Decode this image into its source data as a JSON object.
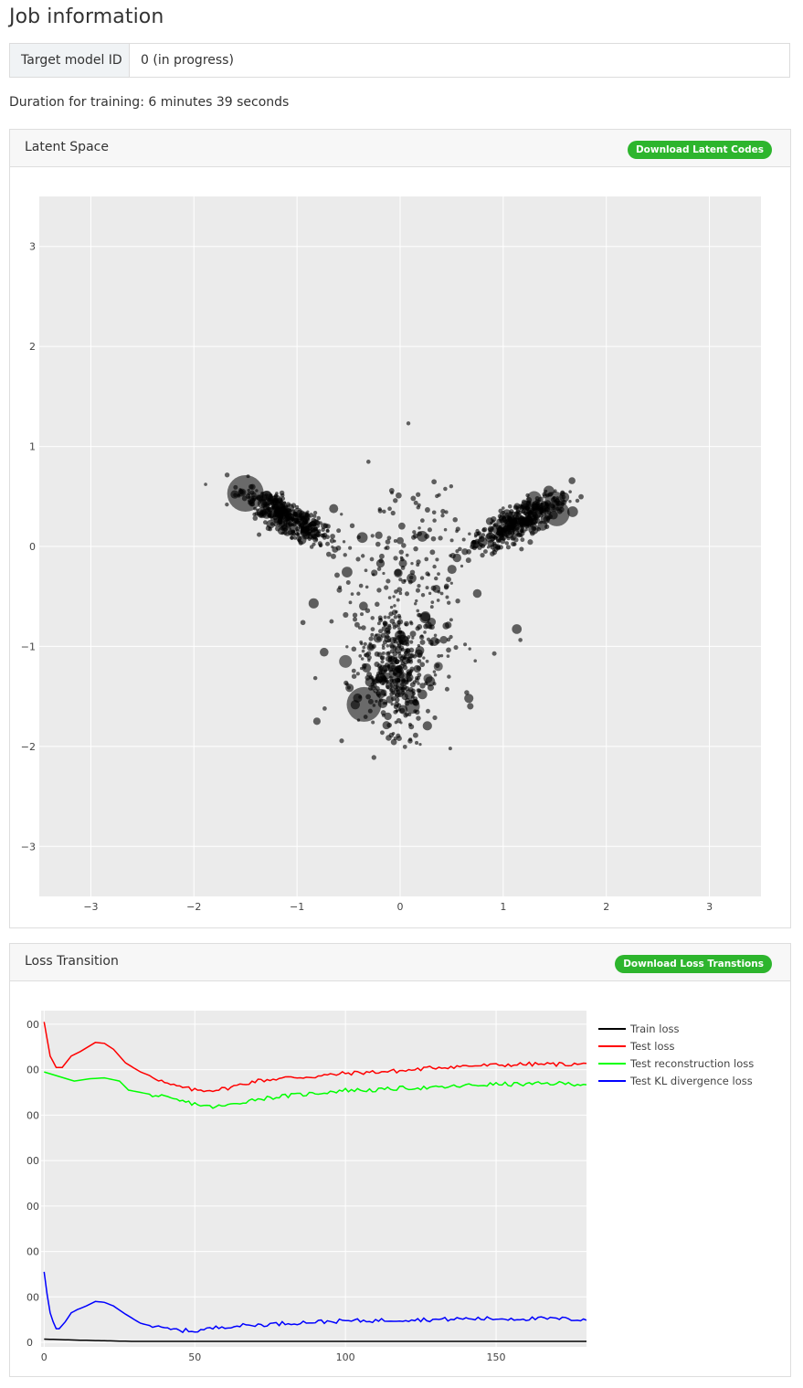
{
  "page": {
    "title": "Job information",
    "target_model_label": "Target model ID",
    "target_model_value": "0 (in progress)",
    "duration": "Duration for training: 6 minutes 39 seconds"
  },
  "latent_card": {
    "title": "Latent Space",
    "download_label": "Download Latent Codes"
  },
  "loss_card": {
    "title": "Loss Transition",
    "download_label": "Download Loss Transtions"
  },
  "colors": {
    "plot_bg": "#ebebeb",
    "button_green": "#2db52d",
    "train": "#000000",
    "test": "#ff0000",
    "recon": "#00ff00",
    "kl": "#0000ff"
  },
  "chart_data": [
    {
      "type": "scatter",
      "title": "",
      "xlabel": "",
      "ylabel": "",
      "xlim": [
        -3.5,
        3.5
      ],
      "ylim": [
        -3.5,
        3.5
      ],
      "x_ticks": [
        -3,
        -2,
        -1,
        0,
        1,
        2,
        3
      ],
      "y_ticks": [
        -3,
        -2,
        -1,
        0,
        1,
        2,
        3
      ],
      "x_tick_labels": [
        "−3",
        "−2",
        "−1",
        "0",
        "1",
        "2",
        "3"
      ],
      "y_tick_labels": [
        "−3",
        "−2",
        "−1",
        "0",
        "1",
        "2",
        "3"
      ],
      "grid": true,
      "clusters": [
        {
          "center": [
            -1.1,
            0.3
          ],
          "n": 380,
          "spread": [
            0.14,
            0.09
          ],
          "direction": [
            0.7,
            -0.4
          ]
        },
        {
          "center": [
            1.15,
            0.25
          ],
          "n": 380,
          "spread": [
            0.14,
            0.1
          ],
          "direction": [
            0.7,
            0.4
          ]
        },
        {
          "center": [
            -0.05,
            -1.25
          ],
          "n": 330,
          "spread": [
            0.13,
            0.16
          ],
          "direction": [
            0,
            1
          ]
        },
        {
          "center": [
            0.05,
            -0.45
          ],
          "n": 260,
          "spread": [
            0.28,
            0.4
          ],
          "direction": [
            0,
            1
          ]
        }
      ],
      "large_points": [
        {
          "x": -1.5,
          "y": 0.53,
          "size": 20
        },
        {
          "x": -1.3,
          "y": 0.48,
          "size": 8
        },
        {
          "x": -1.2,
          "y": 0.45,
          "size": 7
        },
        {
          "x": 1.5,
          "y": 0.45,
          "size": 11
        },
        {
          "x": 1.52,
          "y": 0.33,
          "size": 14
        },
        {
          "x": 1.3,
          "y": 0.48,
          "size": 8
        },
        {
          "x": -0.35,
          "y": -1.58,
          "size": 19
        },
        {
          "x": 0.12,
          "y": -1.6,
          "size": 8
        },
        {
          "x": 0.0,
          "y": -1.33,
          "size": 9
        },
        {
          "x": -0.53,
          "y": -1.15,
          "size": 7
        },
        {
          "x": 0.27,
          "y": -1.32,
          "size": 5
        },
        {
          "x": 0.37,
          "y": -1.2,
          "size": 5
        }
      ]
    },
    {
      "type": "line",
      "title": "",
      "xlabel": "",
      "ylabel": "",
      "xlim": [
        -1,
        180
      ],
      "x_ticks": [
        0,
        50,
        100,
        150
      ],
      "y_ticks": [
        0,
        1,
        2,
        3,
        4,
        5,
        6,
        7
      ],
      "y_tick_labels": [
        "0",
        "00",
        "00",
        "00",
        "00",
        "00",
        "00",
        "00"
      ],
      "ylim": [
        -0.1,
        7.3
      ],
      "grid": true,
      "legend_position": "right",
      "series": [
        {
          "name": "Train loss",
          "color": "#000000",
          "points": [
            [
              0,
              0.07
            ],
            [
              10,
              0.05
            ],
            [
              30,
              0.02
            ],
            [
              180,
              0.02
            ]
          ]
        },
        {
          "name": "Test loss",
          "color": "#ff0000",
          "points": [
            [
              0,
              7.05
            ],
            [
              2,
              6.3
            ],
            [
              4,
              6.05
            ],
            [
              6,
              6.05
            ],
            [
              9,
              6.3
            ],
            [
              12,
              6.4
            ],
            [
              17,
              6.6
            ],
            [
              20,
              6.58
            ],
            [
              23,
              6.45
            ],
            [
              27,
              6.15
            ],
            [
              32,
              5.95
            ],
            [
              37,
              5.82
            ],
            [
              41,
              5.68
            ],
            [
              45,
              5.62
            ],
            [
              50,
              5.55
            ],
            [
              55,
              5.55
            ],
            [
              60,
              5.58
            ],
            [
              70,
              5.75
            ],
            [
              80,
              5.82
            ],
            [
              90,
              5.85
            ],
            [
              100,
              5.92
            ],
            [
              110,
              5.95
            ],
            [
              120,
              5.98
            ],
            [
              130,
              6.05
            ],
            [
              140,
              6.08
            ],
            [
              150,
              6.1
            ],
            [
              160,
              6.12
            ],
            [
              170,
              6.12
            ],
            [
              180,
              6.12
            ]
          ]
        },
        {
          "name": "Test reconstruction loss",
          "color": "#00ff00",
          "points": [
            [
              0,
              5.95
            ],
            [
              5,
              5.85
            ],
            [
              10,
              5.75
            ],
            [
              15,
              5.8
            ],
            [
              20,
              5.82
            ],
            [
              25,
              5.75
            ],
            [
              28,
              5.55
            ],
            [
              32,
              5.5
            ],
            [
              38,
              5.42
            ],
            [
              42,
              5.35
            ],
            [
              46,
              5.3
            ],
            [
              50,
              5.25
            ],
            [
              55,
              5.18
            ],
            [
              60,
              5.2
            ],
            [
              70,
              5.35
            ],
            [
              80,
              5.42
            ],
            [
              90,
              5.48
            ],
            [
              100,
              5.55
            ],
            [
              110,
              5.55
            ],
            [
              120,
              5.6
            ],
            [
              130,
              5.6
            ],
            [
              140,
              5.65
            ],
            [
              150,
              5.68
            ],
            [
              160,
              5.68
            ],
            [
              170,
              5.7
            ],
            [
              180,
              5.68
            ]
          ]
        },
        {
          "name": "Test KL divergence loss",
          "color": "#0000ff",
          "points": [
            [
              0,
              1.55
            ],
            [
              1,
              1.05
            ],
            [
              2,
              0.65
            ],
            [
              3,
              0.45
            ],
            [
              4,
              0.3
            ],
            [
              5,
              0.3
            ],
            [
              7,
              0.45
            ],
            [
              9,
              0.65
            ],
            [
              11,
              0.72
            ],
            [
              14,
              0.8
            ],
            [
              17,
              0.9
            ],
            [
              20,
              0.88
            ],
            [
              23,
              0.8
            ],
            [
              27,
              0.62
            ],
            [
              32,
              0.42
            ],
            [
              38,
              0.32
            ],
            [
              44,
              0.27
            ],
            [
              50,
              0.25
            ],
            [
              55,
              0.3
            ],
            [
              60,
              0.35
            ],
            [
              70,
              0.38
            ],
            [
              80,
              0.42
            ],
            [
              90,
              0.45
            ],
            [
              100,
              0.47
            ],
            [
              110,
              0.48
            ],
            [
              120,
              0.5
            ],
            [
              130,
              0.5
            ],
            [
              140,
              0.52
            ],
            [
              150,
              0.52
            ],
            [
              160,
              0.52
            ],
            [
              170,
              0.52
            ],
            [
              180,
              0.5
            ]
          ]
        }
      ]
    }
  ]
}
